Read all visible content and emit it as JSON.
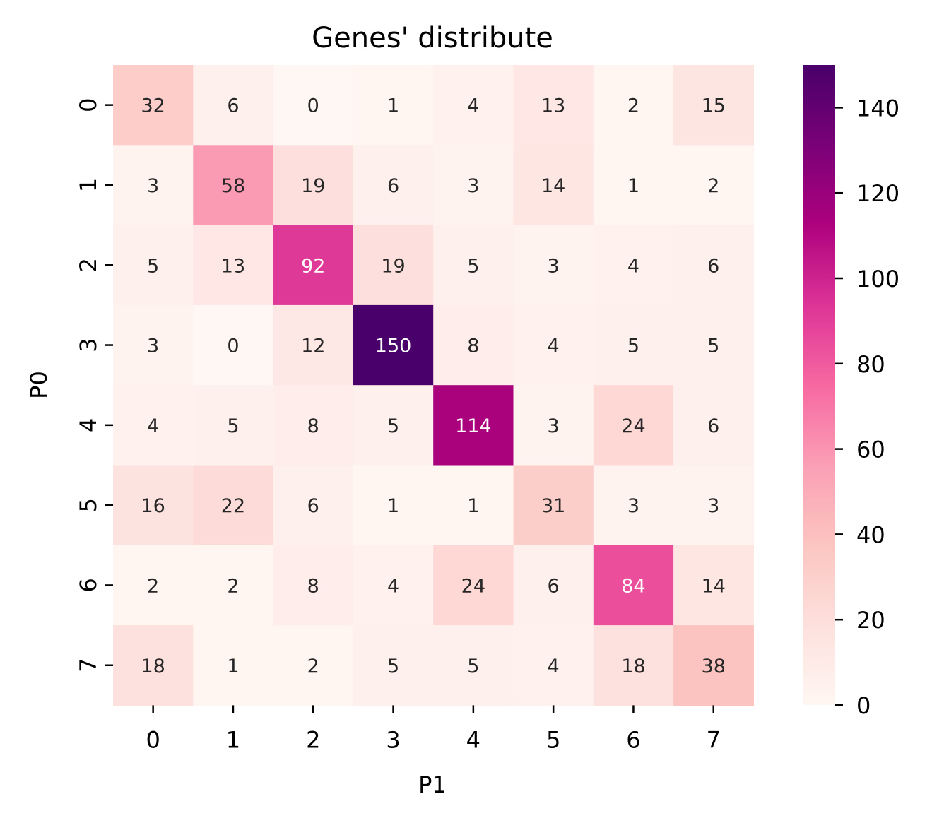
{
  "chart_data": {
    "type": "heatmap",
    "title": "Genes' distribute",
    "xlabel": "P1",
    "ylabel": "P0",
    "x_categories": [
      "0",
      "1",
      "2",
      "3",
      "4",
      "5",
      "6",
      "7"
    ],
    "y_categories": [
      "0",
      "1",
      "2",
      "3",
      "4",
      "5",
      "6",
      "7"
    ],
    "values": [
      [
        32,
        6,
        0,
        1,
        4,
        13,
        2,
        15
      ],
      [
        3,
        58,
        19,
        6,
        3,
        14,
        1,
        2
      ],
      [
        5,
        13,
        92,
        19,
        5,
        3,
        4,
        6
      ],
      [
        3,
        0,
        12,
        150,
        8,
        4,
        5,
        5
      ],
      [
        4,
        5,
        8,
        5,
        114,
        3,
        24,
        6
      ],
      [
        16,
        22,
        6,
        1,
        1,
        31,
        3,
        3
      ],
      [
        2,
        2,
        8,
        4,
        24,
        6,
        84,
        14
      ],
      [
        18,
        1,
        2,
        5,
        5,
        4,
        18,
        38
      ]
    ],
    "colormap": "RdPu",
    "vmin": 0,
    "vmax": 150,
    "colorbar_ticks": [
      "0",
      "20",
      "40",
      "60",
      "80",
      "100",
      "120",
      "140"
    ],
    "colors": {
      "scale": [
        "#fff7f3",
        "#fde0dd",
        "#fcc5c0",
        "#fa9fb5",
        "#f768a1",
        "#dd3497",
        "#ae017e",
        "#7a0177",
        "#49006a"
      ],
      "text_dark": "#262626",
      "text_light": "#ffffff"
    }
  }
}
